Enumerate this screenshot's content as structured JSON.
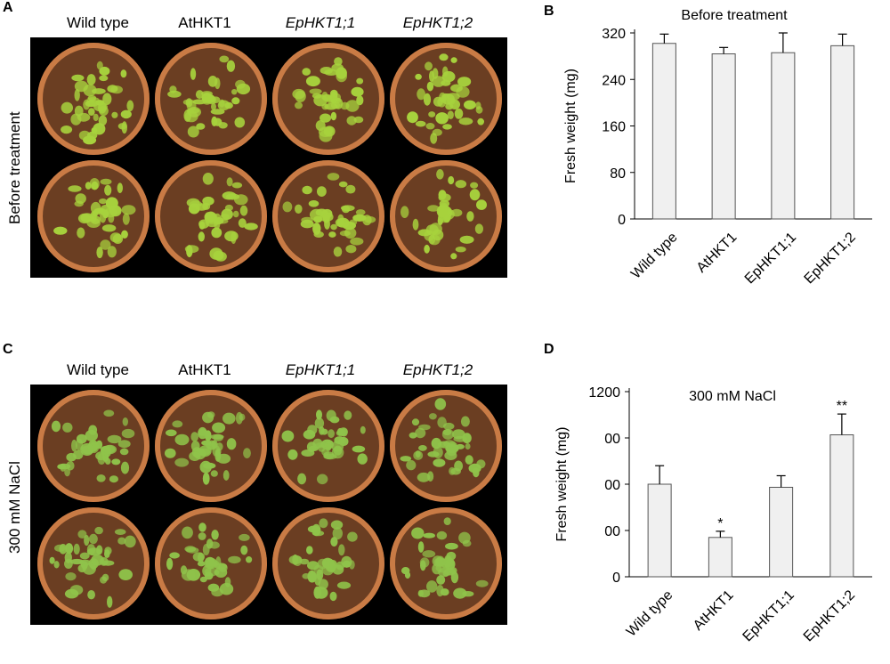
{
  "panels": {
    "A": "A",
    "B": "B",
    "C": "C",
    "D": "D"
  },
  "photoA": {
    "genotypes": [
      "Wild type",
      "AtHKT1",
      "EpHKT1;1",
      "EpHKT1;2"
    ],
    "italic": [
      false,
      false,
      true,
      true
    ],
    "side_label": "Before treatment",
    "soil_color": "#6b3e22",
    "plant_color": "#a7d23d"
  },
  "photoC": {
    "genotypes": [
      "Wild type",
      "AtHKT1",
      "EpHKT1;1",
      "EpHKT1;2"
    ],
    "italic": [
      false,
      false,
      true,
      true
    ],
    "side_label": "300 mM NaCl",
    "soil_color": "#6b3e22",
    "plant_color": "#8fc34a"
  },
  "chart_data": [
    {
      "type": "bar",
      "title": "Before treatment",
      "ylabel": "Fresh weight  (mg)",
      "categories": [
        "Wild type",
        "AtHKT1",
        "EpHKT1;1",
        "EpHKT1;2"
      ],
      "values": [
        302,
        284,
        286,
        298
      ],
      "errors": [
        16,
        11,
        34,
        20
      ],
      "significance": [
        "",
        "",
        "",
        ""
      ],
      "ylim": [
        0,
        320
      ],
      "yticks": [
        "0",
        "80",
        "160",
        "240",
        "320"
      ],
      "bar_color": "#f0f0f0"
    },
    {
      "type": "bar",
      "title": "300 mM NaCl",
      "ylabel": "Fresh weight  (mg)",
      "categories": [
        "Wild type",
        "AtHKT1",
        "EpHKT1;1",
        "EpHKT1;2"
      ],
      "values": [
        600,
        255,
        580,
        920
      ],
      "errors": [
        120,
        40,
        75,
        135
      ],
      "significance": [
        "",
        "*",
        "",
        "**"
      ],
      "ylim": [
        0,
        1200
      ],
      "yticks": [
        "0",
        "00",
        "00",
        "00",
        "1200"
      ],
      "bar_color": "#f0f0f0"
    }
  ]
}
